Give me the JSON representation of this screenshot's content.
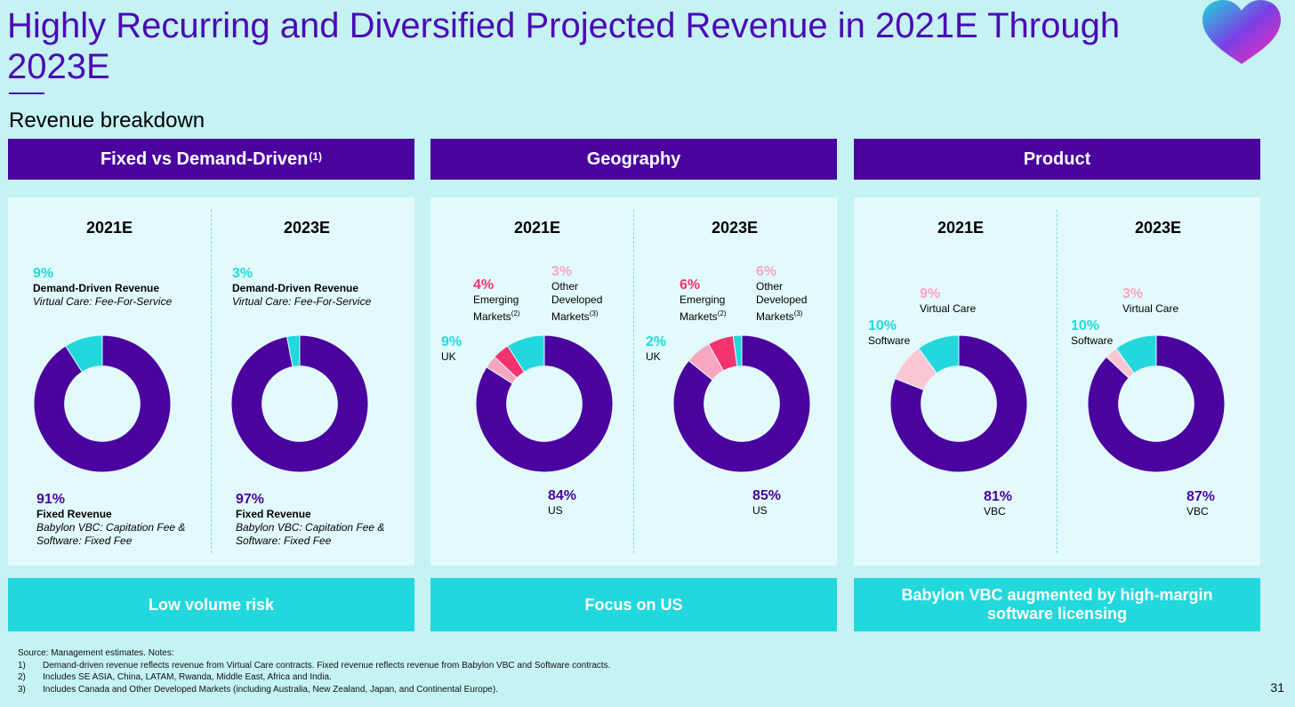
{
  "title": "Highly Recurring and Diversified Projected Revenue in 2021E Through 2023E",
  "subtitle": "Revenue breakdown",
  "colors": {
    "purple": "#4a039f",
    "teal": "#22d8dc",
    "pink": "#f4336e",
    "lightpink": "#f8a6bf",
    "palepink": "#fbc6d3",
    "bg": "#c5f2f3"
  },
  "sections": [
    {
      "header": "Fixed vs Demand-Driven",
      "header_sup": "(1)",
      "footer": "Low volume risk",
      "charts": [
        {
          "year": "2021E",
          "labels": [
            {
              "pct": "9%",
              "bold": "Demand-Driven Revenue",
              "italic": "Virtual Care: Fee-For-Service"
            },
            {
              "pct": "91%",
              "bold": "Fixed Revenue",
              "italic1": "Babylon VBC: Capitation Fee &",
              "italic2": "Software: Fixed Fee"
            }
          ]
        },
        {
          "year": "2023E",
          "labels": [
            {
              "pct": "3%",
              "bold": "Demand-Driven Revenue",
              "italic": "Virtual Care: Fee-For-Service"
            },
            {
              "pct": "97%",
              "bold": "Fixed Revenue",
              "italic1": "Babylon VBC: Capitation Fee &",
              "italic2": "Software: Fixed Fee"
            }
          ]
        }
      ]
    },
    {
      "header": "Geography",
      "footer": "Focus on US",
      "charts": [
        {
          "year": "2021E",
          "labels": [
            {
              "pct": "4%",
              "l1": "Emerging",
              "l2": "Markets",
              "sup": "(2)"
            },
            {
              "pct": "3%",
              "l1": "Other",
              "l2": "Developed",
              "l3": "Markets",
              "sup": "(3)"
            },
            {
              "pct": "9%",
              "l1": "UK"
            },
            {
              "pct": "84%",
              "l1": "US"
            }
          ]
        },
        {
          "year": "2023E",
          "labels": [
            {
              "pct": "6%",
              "l1": "Emerging",
              "l2": "Markets",
              "sup": "(2)"
            },
            {
              "pct": "6%",
              "l1": "Other",
              "l2": "Developed",
              "l3": "Markets",
              "sup": "(3)"
            },
            {
              "pct": "2%",
              "l1": "UK"
            },
            {
              "pct": "85%",
              "l1": "US"
            }
          ]
        }
      ]
    },
    {
      "header": "Product",
      "footer": "Babylon VBC augmented by high-margin software licensing",
      "charts": [
        {
          "year": "2021E",
          "labels": [
            {
              "pct": "9%",
              "l1": "Virtual Care"
            },
            {
              "pct": "10%",
              "l1": "Software"
            },
            {
              "pct": "81%",
              "l1": "VBC"
            }
          ]
        },
        {
          "year": "2023E",
          "labels": [
            {
              "pct": "3%",
              "l1": "Virtual Care"
            },
            {
              "pct": "10%",
              "l1": "Software"
            },
            {
              "pct": "87%",
              "l1": "VBC"
            }
          ]
        }
      ]
    }
  ],
  "chart_data": [
    {
      "type": "pie",
      "group": "Fixed vs Demand-Driven",
      "year": "2021E",
      "categories": [
        "Fixed Revenue",
        "Demand-Driven Revenue"
      ],
      "values": [
        91,
        9
      ]
    },
    {
      "type": "pie",
      "group": "Fixed vs Demand-Driven",
      "year": "2023E",
      "categories": [
        "Fixed Revenue",
        "Demand-Driven Revenue"
      ],
      "values": [
        97,
        3
      ]
    },
    {
      "type": "pie",
      "group": "Geography",
      "year": "2021E",
      "categories": [
        "US",
        "UK",
        "Emerging Markets",
        "Other Developed Markets"
      ],
      "values": [
        84,
        9,
        4,
        3
      ]
    },
    {
      "type": "pie",
      "group": "Geography",
      "year": "2023E",
      "categories": [
        "US",
        "UK",
        "Emerging Markets",
        "Other Developed Markets"
      ],
      "values": [
        85,
        2,
        6,
        6
      ]
    },
    {
      "type": "pie",
      "group": "Product",
      "year": "2021E",
      "categories": [
        "VBC",
        "Software",
        "Virtual Care"
      ],
      "values": [
        81,
        10,
        9
      ]
    },
    {
      "type": "pie",
      "group": "Product",
      "year": "2023E",
      "categories": [
        "VBC",
        "Software",
        "Virtual Care"
      ],
      "values": [
        87,
        10,
        3
      ]
    }
  ],
  "slice_colors": [
    [
      "#4a039f",
      "#22d8dc"
    ],
    [
      "#4a039f",
      "#22d8dc"
    ],
    [
      "#4a039f",
      "#22d8dc",
      "#f4336e",
      "#f8a6bf"
    ],
    [
      "#4a039f",
      "#22d8dc",
      "#f4336e",
      "#f8a6bf"
    ],
    [
      "#4a039f",
      "#22d8dc",
      "#fbc6d3"
    ],
    [
      "#4a039f",
      "#22d8dc",
      "#fbc6d3"
    ]
  ],
  "notes": {
    "source": "Source: Management estimates. Notes:",
    "items": [
      {
        "num": "1)",
        "text": "Demand-driven revenue reflects revenue from Virtual Care contracts. Fixed revenue reflects revenue from Babylon VBC and Software contracts."
      },
      {
        "num": "2)",
        "text": "Includes SE ASIA, China, LATAM, Rwanda, Middle East, Africa and India."
      },
      {
        "num": "3)",
        "text": "Includes Canada and Other Developed Markets (including Australia, New Zealand, Japan, and Continental Europe)."
      }
    ]
  },
  "page_number": "31"
}
